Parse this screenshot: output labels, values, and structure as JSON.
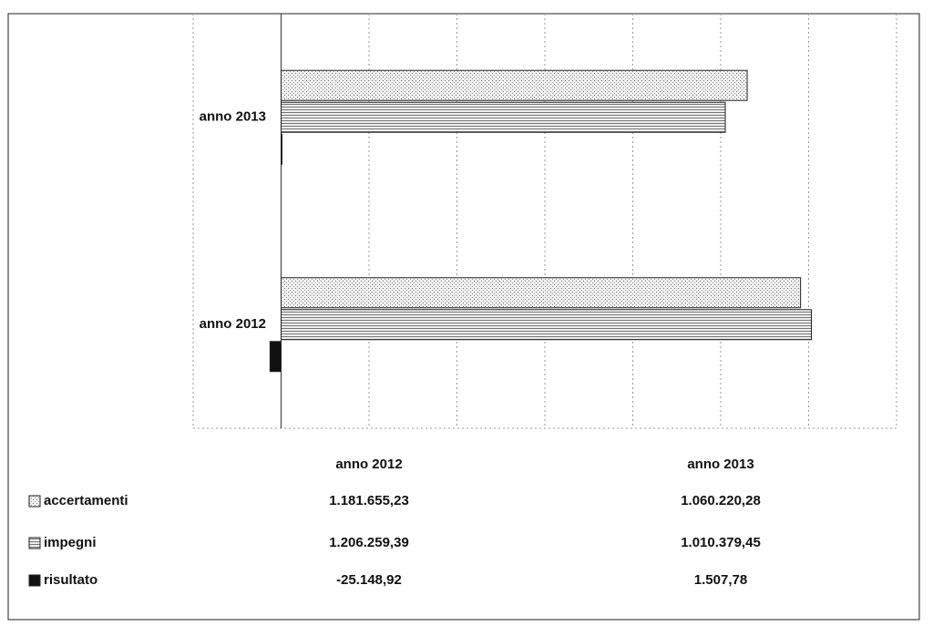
{
  "chart_data": {
    "type": "bar",
    "orientation": "horizontal",
    "categories": [
      "anno 2012",
      "anno 2013"
    ],
    "series": [
      {
        "name": "accertamenti",
        "color": "#d8d8d8",
        "values": [
          1181655.23,
          1060220.28
        ],
        "value_labels": [
          "1.181.655,23",
          "1.060.220,28"
        ]
      },
      {
        "name": "impegni",
        "color": "#c8c8c8",
        "values": [
          1206259.39,
          1010379.45
        ],
        "value_labels": [
          "1.206.259,39",
          "1.010.379,45"
        ]
      },
      {
        "name": "risultato",
        "color": "#111111",
        "values": [
          -25148.92,
          1507.78
        ],
        "value_labels": [
          "-25.148,92",
          "1.507,78"
        ]
      }
    ],
    "xlim": [
      -200000,
      1400000
    ],
    "xticks": [
      -200000,
      0,
      200000,
      400000,
      600000,
      800000,
      1000000,
      1200000,
      1400000
    ],
    "grid": true
  }
}
